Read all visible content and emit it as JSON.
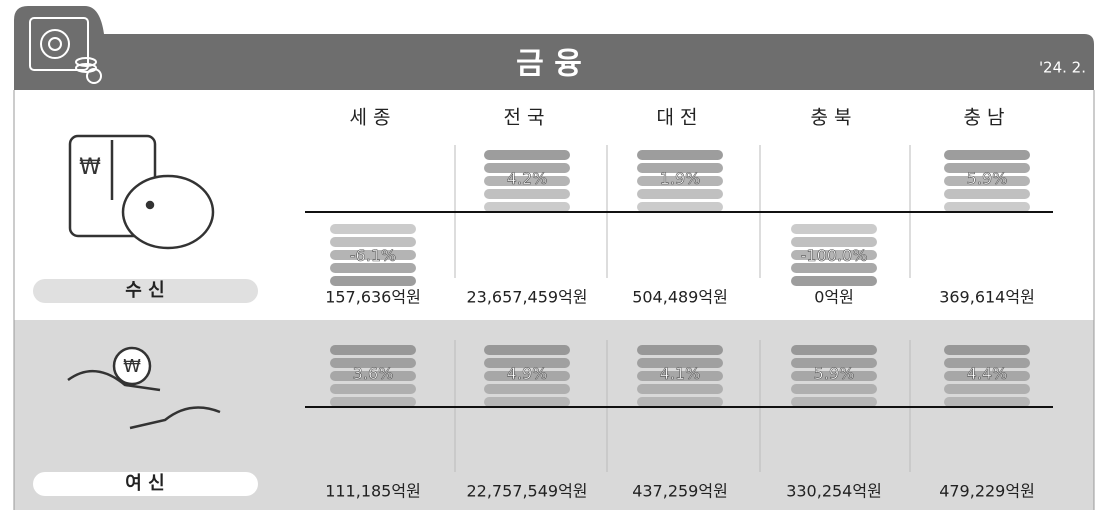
{
  "header": {
    "title": "금 융",
    "date": "'24. 2."
  },
  "chart_data": [
    {
      "type": "bar",
      "title": "수 신",
      "categories": [
        "세종",
        "전국",
        "대전",
        "충북",
        "충남"
      ],
      "values": [
        -6.1,
        4.2,
        1.9,
        -100.0,
        5.9
      ],
      "value_labels": [
        "-6.1%",
        "4.2%",
        "1.9%",
        "-100.0%",
        "5.9%"
      ],
      "amounts": [
        "157,636억원",
        "23,657,459억원",
        "504,489억원",
        "0억원",
        "369,614억원"
      ],
      "color": "#8c8c8c"
    },
    {
      "type": "bar",
      "title": "여 신",
      "values": [
        3.6,
        4.9,
        4.1,
        5.9,
        4.4
      ],
      "value_labels": [
        "3.6%",
        "4.9%",
        "4.1%",
        "5.9%",
        "4.4%"
      ],
      "amounts": [
        "111,185억원",
        "22,757,549억원",
        "437,259억원",
        "330,254억원",
        "479,229억원"
      ],
      "color": "#8c8c8c"
    }
  ]
}
